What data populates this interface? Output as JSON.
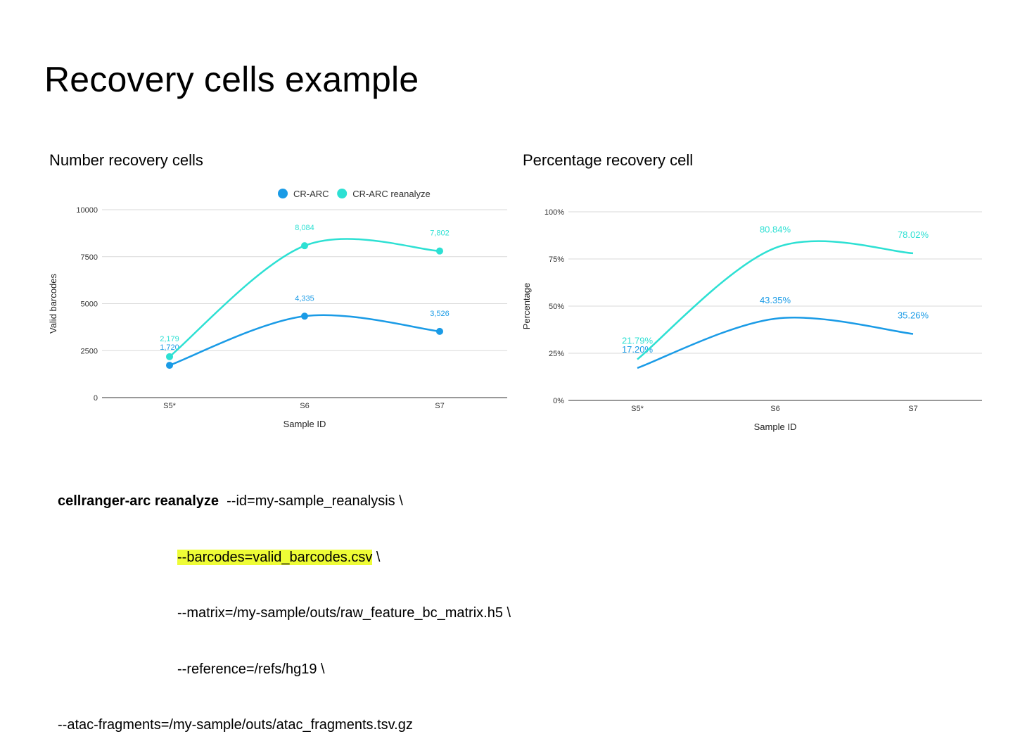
{
  "slide": {
    "title": "Recovery cells example"
  },
  "colors": {
    "cr_arc": "#1a9be6",
    "cr_arc_reanalyze": "#2de0d3",
    "highlight": "#eefc36",
    "grid": "#d9d9d9",
    "axis_text": "#333333"
  },
  "chart_data": [
    {
      "type": "line",
      "title": "Number recovery cells",
      "xlabel": "Sample ID",
      "ylabel": "Valid barcodes",
      "categories": [
        "S5*",
        "S6",
        "S7"
      ],
      "ylim": [
        0,
        10000
      ],
      "yticks": [
        "0",
        "2500",
        "5000",
        "7500",
        "10000"
      ],
      "legend": "top",
      "grid": true,
      "markers": true,
      "series": [
        {
          "name": "CR-ARC",
          "values": [
            1720,
            4335,
            3526
          ],
          "labels": [
            "1,720",
            "4,335",
            "3,526"
          ]
        },
        {
          "name": "CR-ARC reanalyze",
          "values": [
            2179,
            8084,
            7802
          ],
          "labels": [
            "2,179",
            "8,084",
            "7,802"
          ]
        }
      ]
    },
    {
      "type": "line",
      "title": "Percentage recovery cell",
      "xlabel": "Sample ID",
      "ylabel": "Percentage",
      "categories": [
        "S5*",
        "S6",
        "S7"
      ],
      "ylim": [
        0,
        100
      ],
      "yticks": [
        "0%",
        "25%",
        "50%",
        "75%",
        "100%"
      ],
      "legend": "none",
      "grid": true,
      "markers": false,
      "series": [
        {
          "values": [
            17.2,
            43.35,
            35.26
          ],
          "labels": [
            "17.20%",
            "43.35%",
            "35.26%"
          ]
        },
        {
          "values": [
            21.79,
            80.84,
            78.02
          ],
          "labels": [
            "21.79%",
            "80.84%",
            "78.02%"
          ]
        }
      ]
    }
  ],
  "command": {
    "name": "cellranger-arc reanalyze",
    "line1_args": "  --id=my-sample_reanalysis \\",
    "line2_highlight": "--barcodes=valid_barcodes.csv",
    "line2_rest": " \\",
    "line3": "--matrix=/my-sample/outs/raw_feature_bc_matrix.h5 \\",
    "line4": "--reference=/refs/hg19 \\",
    "line5": "--atac-fragments=/my-sample/outs/atac_fragments.tsv.gz"
  }
}
